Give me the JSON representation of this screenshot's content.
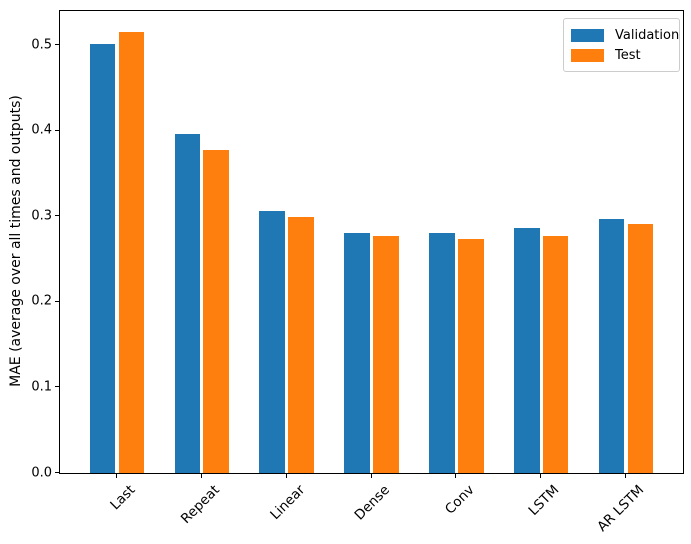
{
  "chart_data": {
    "type": "bar",
    "title": "",
    "xlabel": "",
    "ylabel": "MAE (average over all times and outputs)",
    "categories": [
      "Last",
      "Repeat",
      "Linear",
      "Dense",
      "Conv",
      "LSTM",
      "AR LSTM"
    ],
    "series": [
      {
        "name": "Validation",
        "color": "#1f77b4",
        "values": [
          0.501,
          0.396,
          0.306,
          0.28,
          0.28,
          0.286,
          0.297
        ]
      },
      {
        "name": "Test",
        "color": "#ff7f0e",
        "values": [
          0.515,
          0.377,
          0.299,
          0.277,
          0.274,
          0.277,
          0.291
        ]
      }
    ],
    "ylim": [
      0,
      0.54
    ],
    "yticks": [
      0.0,
      0.1,
      0.2,
      0.3,
      0.4,
      0.5
    ],
    "ytick_labels": [
      "0.0",
      "0.1",
      "0.2",
      "0.3",
      "0.4",
      "0.5"
    ],
    "xtick_rotation_deg": 45,
    "grid": false,
    "legend_position": "upper right",
    "bar_width_units": 0.3,
    "bar_offset_units": 0.17,
    "x_margin_units": 0.67
  }
}
